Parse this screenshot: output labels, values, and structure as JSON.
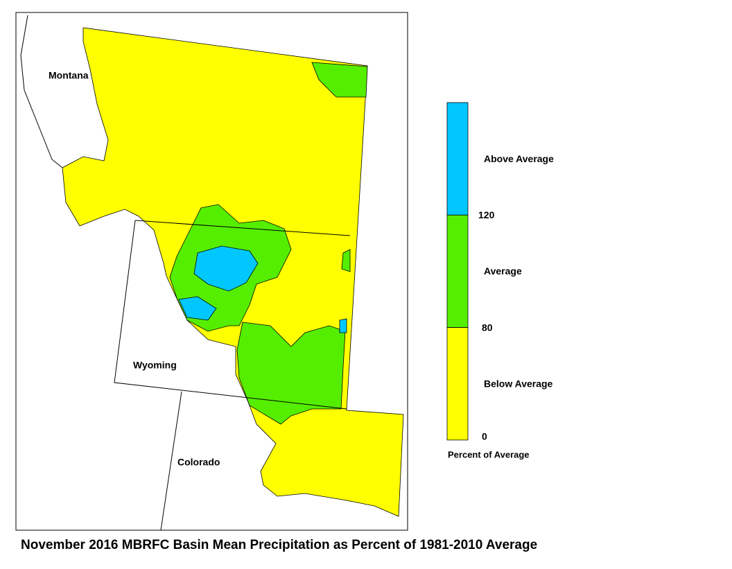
{
  "title": "November 2016 MBRFC Basin Mean Precipitation as Percent of 1981-2010 Average",
  "map": {
    "states": [
      "Montana",
      "Wyoming",
      "Colorado"
    ]
  },
  "legend": {
    "title": "Percent of Average",
    "classes": [
      {
        "label": "Above Average",
        "color": "#00c8ff"
      },
      {
        "label": "Average",
        "color": "#55ee00"
      },
      {
        "label": "Below Average",
        "color": "#ffff00"
      }
    ],
    "ticks": [
      120,
      80,
      0
    ]
  }
}
